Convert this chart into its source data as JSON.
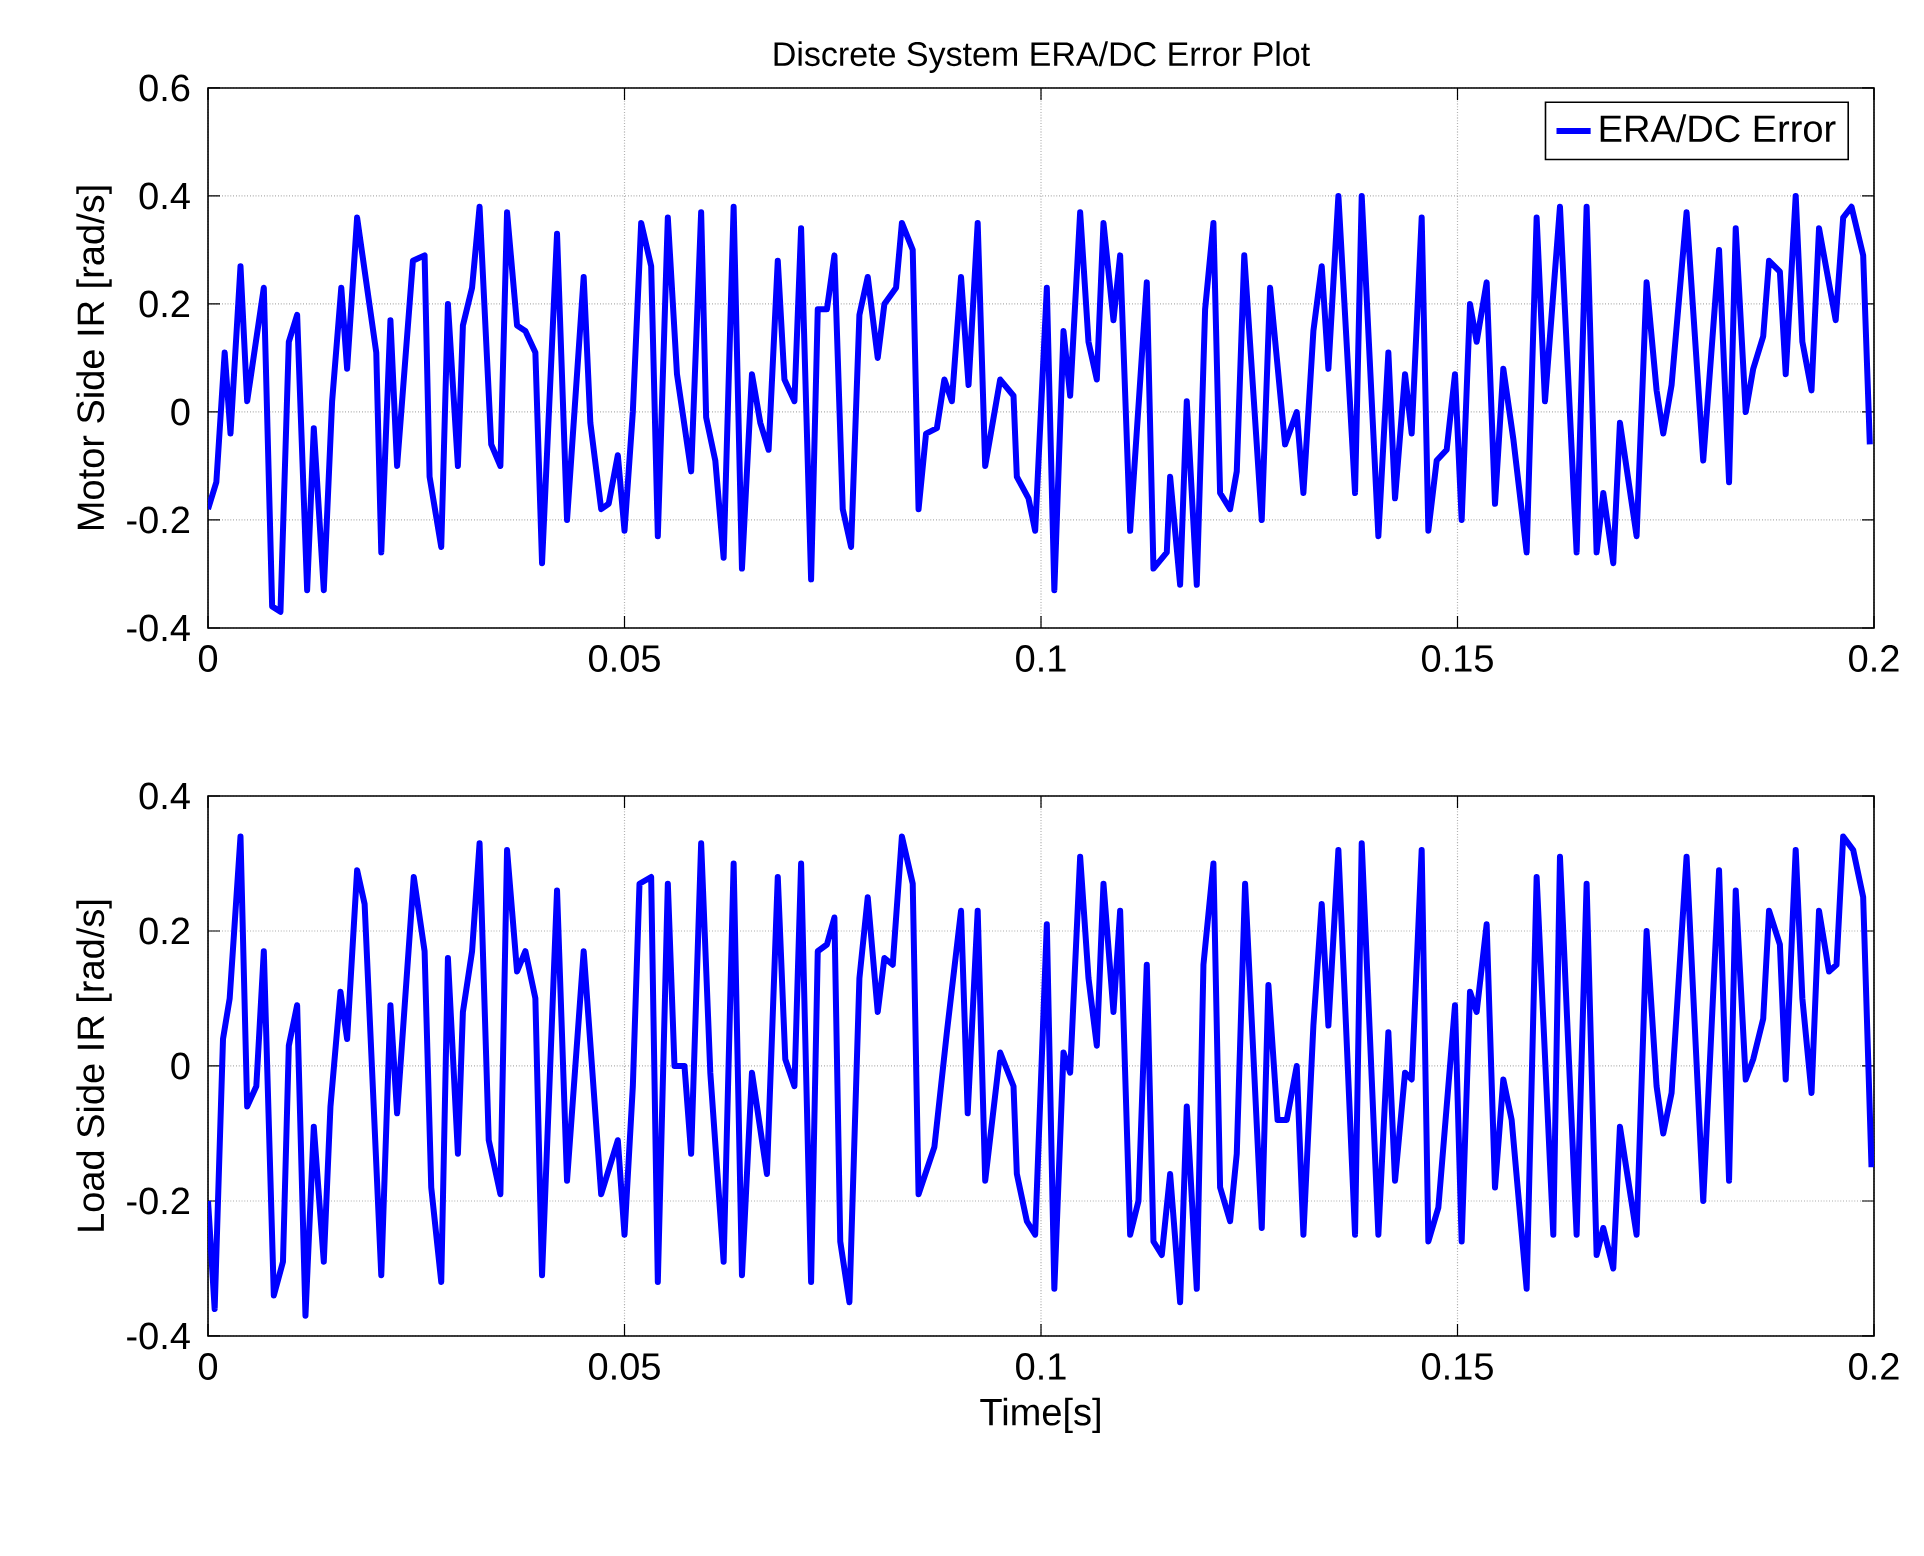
{
  "chart_data": [
    {
      "type": "line",
      "title": "Discrete System ERA/DC Error Plot",
      "ylabel": "Motor Side IR [rad/s]",
      "xlim": [
        0,
        0.2
      ],
      "xticks": [
        0,
        0.05,
        0.1,
        0.15,
        0.2
      ],
      "ylim": [
        -0.4,
        0.6
      ],
      "yticks": [
        -0.4,
        -0.2,
        0,
        0.2,
        0.4,
        0.6
      ],
      "grid": true,
      "legend": "top right",
      "series": [
        {
          "name": "ERA/DC Error",
          "color": "#0000ff",
          "x": [
            0,
            0.001,
            0.002,
            0.0027,
            0.0039,
            0.0047,
            0.0067,
            0.0077,
            0.0087,
            0.0097,
            0.0107,
            0.0119,
            0.0127,
            0.0139,
            0.0149,
            0.016,
            0.0167,
            0.0179,
            0.0202,
            0.0208,
            0.0219,
            0.0227,
            0.0246,
            0.026,
            0.0266,
            0.028,
            0.0288,
            0.03,
            0.0306,
            0.0317,
            0.0326,
            0.034,
            0.0351,
            0.0359,
            0.0371,
            0.0381,
            0.0393,
            0.0401,
            0.0419,
            0.0431,
            0.0451,
            0.0459,
            0.0472,
            0.0481,
            0.0492,
            0.05,
            0.051,
            0.052,
            0.0532,
            0.054,
            0.0552,
            0.0563,
            0.058,
            0.0592,
            0.0598,
            0.0609,
            0.0619,
            0.0631,
            0.0641,
            0.0653,
            0.0663,
            0.0673,
            0.0684,
            0.0692,
            0.0704,
            0.0712,
            0.0724,
            0.0732,
            0.0743,
            0.0752,
            0.0762,
            0.0772,
            0.0782,
            0.0792,
            0.0804,
            0.0812,
            0.0826,
            0.0833,
            0.0846,
            0.0853,
            0.0862,
            0.0875,
            0.0884,
            0.0893,
            0.0904,
            0.0913,
            0.0924,
            0.0933,
            0.0951,
            0.0967,
            0.0971,
            0.0985,
            0.0993,
            0.1007,
            0.1016,
            0.1027,
            0.1035,
            0.1047,
            0.1057,
            0.1067,
            0.1075,
            0.1087,
            0.1095,
            0.1107,
            0.1127,
            0.1135,
            0.1151,
            0.1155,
            0.1167,
            0.1175,
            0.1187,
            0.1197,
            0.1207,
            0.1215,
            0.1227,
            0.1235,
            0.1244,
            0.1265,
            0.1275,
            0.1293,
            0.1307,
            0.1315,
            0.1327,
            0.1337,
            0.1345,
            0.1357,
            0.1377,
            0.1385,
            0.1405,
            0.1417,
            0.1425,
            0.1437,
            0.1445,
            0.1457,
            0.1465,
            0.1475,
            0.1487,
            0.1497,
            0.1505,
            0.1515,
            0.1523,
            0.1535,
            0.1545,
            0.1555,
            0.1567,
            0.1583,
            0.1595,
            0.1605,
            0.1623,
            0.1643,
            0.1655,
            0.1667,
            0.1675,
            0.1687,
            0.1695,
            0.1715,
            0.1727,
            0.1739,
            0.1747,
            0.1757,
            0.1775,
            0.1795,
            0.1814,
            0.1826,
            0.1834,
            0.1846,
            0.1855,
            0.1867,
            0.1874,
            0.1887,
            0.1894,
            0.1906,
            0.1914,
            0.1925,
            0.1934,
            0.1954,
            0.1963,
            0.1973,
            0.1987,
            0.1995
          ],
          "values": [
            -0.18,
            -0.13,
            0.11,
            -0.04,
            0.27,
            0.02,
            0.23,
            -0.36,
            -0.37,
            0.13,
            0.18,
            -0.33,
            -0.03,
            -0.33,
            0.02,
            0.23,
            0.08,
            0.36,
            0.11,
            -0.26,
            0.17,
            -0.1,
            0.28,
            0.29,
            -0.12,
            -0.25,
            0.2,
            -0.1,
            0.16,
            0.23,
            0.38,
            -0.06,
            -0.1,
            0.37,
            0.16,
            0.15,
            0.11,
            -0.28,
            0.33,
            -0.2,
            0.25,
            -0.02,
            -0.18,
            -0.17,
            -0.08,
            -0.22,
            0,
            0.35,
            0.27,
            -0.23,
            0.36,
            0.07,
            -0.11,
            0.37,
            -0.01,
            -0.09,
            -0.27,
            0.38,
            -0.29,
            0.07,
            -0.02,
            -0.07,
            0.28,
            0.06,
            0.02,
            0.34,
            -0.31,
            0.19,
            0.19,
            0.29,
            -0.18,
            -0.25,
            0.18,
            0.25,
            0.1,
            0.2,
            0.23,
            0.35,
            0.3,
            -0.18,
            -0.04,
            -0.03,
            0.06,
            0.02,
            0.25,
            0.05,
            0.35,
            -0.1,
            0.06,
            0.03,
            -0.12,
            -0.16,
            -0.22,
            0.23,
            -0.33,
            0.15,
            0.03,
            0.37,
            0.13,
            0.06,
            0.35,
            0.17,
            0.29,
            -0.22,
            0.24,
            -0.29,
            -0.26,
            -0.12,
            -0.32,
            0.02,
            -0.32,
            0.19,
            0.35,
            -0.15,
            -0.18,
            -0.11,
            0.29,
            -0.2,
            0.23,
            -0.06,
            0,
            -0.15,
            0.15,
            0.27,
            0.08,
            0.4,
            -0.15,
            0.4,
            -0.23,
            0.11,
            -0.16,
            0.07,
            -0.04,
            0.36,
            -0.22,
            -0.09,
            -0.07,
            0.07,
            -0.2,
            0.2,
            0.13,
            0.24,
            -0.17,
            0.08,
            -0.05,
            -0.26,
            0.36,
            0.02,
            0.38,
            -0.26,
            0.38,
            -0.26,
            -0.15,
            -0.28,
            -0.02,
            -0.23,
            0.24,
            0.04,
            -0.04,
            0.05,
            0.37,
            -0.09,
            0.3,
            -0.13,
            0.34,
            0,
            0.08,
            0.14,
            0.28,
            0.26,
            0.07,
            0.4,
            0.13,
            0.04,
            0.34,
            0.17,
            0.36,
            0.38,
            0.29,
            -0.06
          ]
        }
      ]
    },
    {
      "type": "line",
      "xlabel": "Time[s]",
      "ylabel": "Load Side IR [rad/s]",
      "xlim": [
        0,
        0.2
      ],
      "xticks": [
        0,
        0.05,
        0.1,
        0.15,
        0.2
      ],
      "ylim": [
        -0.4,
        0.4
      ],
      "yticks": [
        -0.4,
        -0.2,
        0,
        0.2,
        0.4
      ],
      "grid": true,
      "series": [
        {
          "color": "#0000ff",
          "x": [
            0,
            0.0008,
            0.0018,
            0.0026,
            0.0039,
            0.0047,
            0.0058,
            0.0067,
            0.0079,
            0.009,
            0.0097,
            0.0107,
            0.0117,
            0.0127,
            0.0139,
            0.0147,
            0.0159,
            0.0167,
            0.0179,
            0.0188,
            0.0208,
            0.0219,
            0.0227,
            0.0247,
            0.026,
            0.0268,
            0.028,
            0.0288,
            0.03,
            0.0306,
            0.0317,
            0.0326,
            0.0337,
            0.0351,
            0.0359,
            0.0371,
            0.0381,
            0.0393,
            0.0401,
            0.0419,
            0.0431,
            0.0451,
            0.0472,
            0.0492,
            0.05,
            0.051,
            0.0518,
            0.0532,
            0.054,
            0.0552,
            0.056,
            0.0572,
            0.058,
            0.0592,
            0.0603,
            0.0619,
            0.0631,
            0.0641,
            0.0653,
            0.0671,
            0.0684,
            0.0693,
            0.0704,
            0.0712,
            0.0724,
            0.0732,
            0.0743,
            0.0752,
            0.0759,
            0.077,
            0.0782,
            0.0792,
            0.0804,
            0.0812,
            0.0822,
            0.0833,
            0.0846,
            0.0853,
            0.0872,
            0.0887,
            0.0904,
            0.0912,
            0.0924,
            0.0933,
            0.0951,
            0.0967,
            0.0971,
            0.0983,
            0.0993,
            0.1007,
            0.1016,
            0.1027,
            0.1035,
            0.1047,
            0.1057,
            0.1067,
            0.1075,
            0.1087,
            0.1095,
            0.1107,
            0.1117,
            0.1127,
            0.1135,
            0.1145,
            0.1155,
            0.1167,
            0.1175,
            0.1187,
            0.1195,
            0.1207,
            0.1215,
            0.1227,
            0.1235,
            0.1245,
            0.1265,
            0.1273,
            0.1284,
            0.1295,
            0.1307,
            0.1315,
            0.1327,
            0.1337,
            0.1345,
            0.1357,
            0.1377,
            0.1385,
            0.1405,
            0.1417,
            0.1425,
            0.1437,
            0.1445,
            0.1457,
            0.1465,
            0.1477,
            0.1497,
            0.1505,
            0.1515,
            0.1523,
            0.1535,
            0.1545,
            0.1555,
            0.1565,
            0.1583,
            0.1595,
            0.1615,
            0.1623,
            0.1643,
            0.1655,
            0.1667,
            0.1675,
            0.1687,
            0.1695,
            0.1715,
            0.1727,
            0.1739,
            0.1747,
            0.1757,
            0.1775,
            0.1795,
            0.1814,
            0.1826,
            0.1834,
            0.1846,
            0.1855,
            0.1867,
            0.1874,
            0.1887,
            0.1894,
            0.1906,
            0.1914,
            0.1925,
            0.1934,
            0.1946,
            0.1955,
            0.1963,
            0.1975,
            0.1987,
            0.1997
          ],
          "values": [
            -0.2,
            -0.36,
            0.04,
            0.1,
            0.34,
            -0.06,
            -0.03,
            0.17,
            -0.34,
            -0.29,
            0.03,
            0.09,
            -0.37,
            -0.09,
            -0.29,
            -0.06,
            0.11,
            0.04,
            0.29,
            0.24,
            -0.31,
            0.09,
            -0.07,
            0.28,
            0.17,
            -0.18,
            -0.32,
            0.16,
            -0.13,
            0.08,
            0.17,
            0.33,
            -0.11,
            -0.19,
            0.32,
            0.14,
            0.17,
            0.1,
            -0.31,
            0.26,
            -0.17,
            0.17,
            -0.19,
            -0.11,
            -0.25,
            -0.03,
            0.27,
            0.28,
            -0.32,
            0.27,
            0,
            0,
            -0.13,
            0.33,
            -0.01,
            -0.29,
            0.3,
            -0.31,
            -0.01,
            -0.16,
            0.28,
            0.01,
            -0.03,
            0.3,
            -0.32,
            0.17,
            0.18,
            0.22,
            -0.26,
            -0.35,
            0.13,
            0.25,
            0.08,
            0.16,
            0.15,
            0.34,
            0.27,
            -0.19,
            -0.12,
            0.05,
            0.23,
            -0.07,
            0.23,
            -0.17,
            0.02,
            -0.03,
            -0.16,
            -0.23,
            -0.25,
            0.21,
            -0.33,
            0.02,
            -0.01,
            0.31,
            0.13,
            0.03,
            0.27,
            0.08,
            0.23,
            -0.25,
            -0.2,
            0.15,
            -0.26,
            -0.28,
            -0.16,
            -0.35,
            -0.06,
            -0.33,
            0.15,
            0.3,
            -0.18,
            -0.23,
            -0.13,
            0.27,
            -0.24,
            0.12,
            -0.08,
            -0.08,
            0,
            -0.25,
            0.06,
            0.24,
            0.06,
            0.32,
            -0.25,
            0.33,
            -0.25,
            0.05,
            -0.17,
            -0.01,
            -0.02,
            0.32,
            -0.26,
            -0.21,
            0.09,
            -0.26,
            0.11,
            0.08,
            0.21,
            -0.18,
            -0.02,
            -0.08,
            -0.33,
            0.28,
            -0.25,
            0.31,
            -0.25,
            0.27,
            -0.28,
            -0.24,
            -0.3,
            -0.09,
            -0.25,
            0.2,
            -0.03,
            -0.1,
            -0.04,
            0.31,
            -0.2,
            0.29,
            -0.17,
            0.26,
            -0.02,
            0.01,
            0.07,
            0.23,
            0.18,
            -0.02,
            0.32,
            0.1,
            -0.04,
            0.23,
            0.14,
            0.15,
            0.34,
            0.32,
            0.25,
            -0.15
          ]
        }
      ]
    }
  ]
}
